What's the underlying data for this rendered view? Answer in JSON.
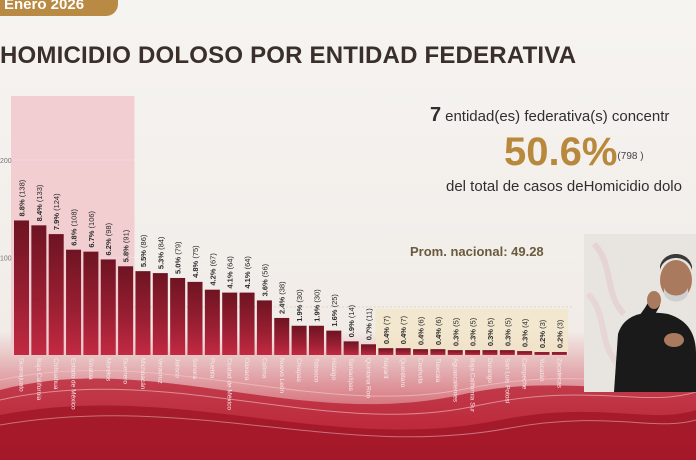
{
  "header": {
    "date": "Enero 2026",
    "title": "HOMICIDIO DOLOSO POR ENTIDAD FEDERATIVA"
  },
  "summary": {
    "count": "7",
    "line1_text": "entidad(es) federativa(s) concentr",
    "percent": "50.6%",
    "cases": "(798 )",
    "line3": "del total de casos deHomicidio dolo"
  },
  "average": {
    "label": "Prom. nacional: 49.28",
    "value": 49.28
  },
  "chart_data": {
    "type": "bar",
    "title": "HOMICIDIO DOLOSO POR ENTIDAD FEDERATIVA",
    "categories": [
      "Guanajuato",
      "Baja California",
      "Chihuahua",
      "Estado de México",
      "Sinaloa",
      "Morelos",
      "Guerrero",
      "Michoacán",
      "Veracruz",
      "Jalisco",
      "Sonora",
      "Puebla",
      "Ciudad de México",
      "Oaxaca",
      "Colima",
      "Nuevo León",
      "Chiapas",
      "Tabasco",
      "Hidalgo",
      "Tamaulipas",
      "Quintana Roo",
      "Nayarit",
      "Querétaro",
      "Coahuila",
      "Tlaxcala",
      "Aguascalientes",
      "Baja California Sur",
      "Durango",
      "San Luis Potosí",
      "Campeche",
      "Yucatán",
      "Zacatecas"
    ],
    "values": [
      138,
      133,
      124,
      108,
      106,
      98,
      91,
      86,
      84,
      79,
      75,
      67,
      64,
      64,
      56,
      38,
      30,
      30,
      25,
      14,
      11,
      7,
      7,
      6,
      6,
      5,
      5,
      5,
      5,
      4,
      3,
      3
    ],
    "labels": [
      "8.8%",
      "8.4%",
      "7.9%",
      "6.8%",
      "6.7%",
      "6.2%",
      "5.8%",
      "5.5%",
      "5.3%",
      "5.0%",
      "4.8%",
      "4.2%",
      "4.1%",
      "4.1%",
      "3.6%",
      "2.4%",
      "1.9%",
      "1.9%",
      "1.6%",
      "0.9%",
      "0.7%",
      "0.4%",
      "0.4%",
      "0.4%",
      "0.4%",
      "0.3%",
      "0.3%",
      "0.3%",
      "0.3%",
      "0.3%",
      "0.2%",
      "0.2%"
    ],
    "ylim": [
      0,
      220
    ],
    "yticks": [
      "200",
      "100"
    ],
    "highlighted_count": 7,
    "colors": {
      "highlight_band": "#f1c8cc",
      "bar_top": "#6e1422",
      "bar_mid": "#9c1f33",
      "bar_low": "#c22a42",
      "faded_band": "#f3e6c8"
    }
  }
}
